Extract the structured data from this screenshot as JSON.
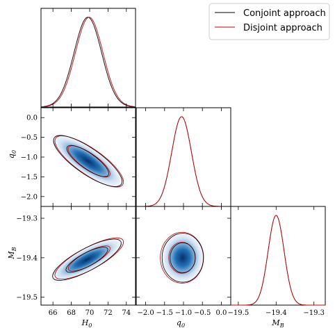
{
  "chart_data": {
    "type": "corner",
    "legend": {
      "placement": "top-right",
      "entries": [
        {
          "name": "Conjoint approach",
          "color": "#000000"
        },
        {
          "name": "Disjoint approach",
          "color": "#cc0000"
        }
      ]
    },
    "parameters": [
      {
        "key": "H0",
        "label": "H",
        "sub": "0",
        "range": [
          64.7,
          75.0
        ],
        "ticks": [
          66,
          68,
          70,
          72,
          74
        ]
      },
      {
        "key": "q0",
        "label": "q",
        "sub": "0",
        "range": [
          -2.25,
          0.25
        ],
        "ticks": [
          -2.0,
          -1.5,
          -1.0,
          -0.5,
          0.0
        ]
      },
      {
        "key": "MB",
        "label": "M",
        "sub": "B",
        "range": [
          -19.52,
          -19.27
        ],
        "ticks": [
          -19.5,
          -19.4,
          -19.3
        ]
      }
    ],
    "tick_labels": {
      "H0": [
        "66",
        "68",
        "70",
        "72",
        "74"
      ],
      "q0": [
        "−2.0",
        "−1.5",
        "−1.0",
        "−0.5",
        "0.0"
      ],
      "q0_left": [
        "0.0",
        "−0.5",
        "−1.0",
        "−1.5",
        "−2.0"
      ],
      "MB": [
        "−19.5",
        "−19.4",
        "−19.3"
      ],
      "MB_left": [
        "−19.3",
        "−19.4",
        "−19.5"
      ]
    },
    "marginals": {
      "H0": {
        "conjoint": {
          "mean": 69.8,
          "sd": 1.5
        },
        "disjoint": {
          "mean": 69.95,
          "sd": 1.5
        }
      },
      "q0": {
        "conjoint": {
          "mean": -1.05,
          "sd": 0.26
        },
        "disjoint": {
          "mean": -1.05,
          "sd": 0.26
        }
      },
      "MB": {
        "conjoint": {
          "mean": -19.4,
          "sd": 0.021
        },
        "disjoint": {
          "mean": -19.4,
          "sd": 0.021
        }
      }
    },
    "contours": [
      {
        "x": "H0",
        "y": "q0",
        "conjoint": {
          "cx": 69.8,
          "cy": -1.1,
          "sx": 1.5,
          "sy": 0.26,
          "rho": -0.8
        },
        "disjoint": {
          "cx": 69.95,
          "cy": -1.11,
          "sx": 1.5,
          "sy": 0.26,
          "rho": -0.8
        }
      },
      {
        "x": "H0",
        "y": "MB",
        "conjoint": {
          "cx": 69.7,
          "cy": -19.405,
          "sx": 1.5,
          "sy": 0.021,
          "rho": 0.8
        },
        "disjoint": {
          "cx": 69.95,
          "cy": -19.402,
          "sx": 1.5,
          "sy": 0.021,
          "rho": 0.8
        }
      },
      {
        "x": "q0",
        "y": "MB",
        "conjoint": {
          "cx": -1.02,
          "cy": -19.4,
          "sx": 0.26,
          "sy": 0.021,
          "rho": 0.0
        },
        "disjoint": {
          "cx": -1.04,
          "cy": -19.4,
          "sx": 0.27,
          "sy": 0.022,
          "rho": 0.0
        }
      }
    ],
    "contour_levels": [
      "1-sigma",
      "2-sigma"
    ],
    "colors": {
      "conjoint": "#000000",
      "disjoint": "#cc0000",
      "fill_dark": "#08306b",
      "fill_mid": "#2171b5",
      "fill_light": "#c6dbef"
    }
  }
}
